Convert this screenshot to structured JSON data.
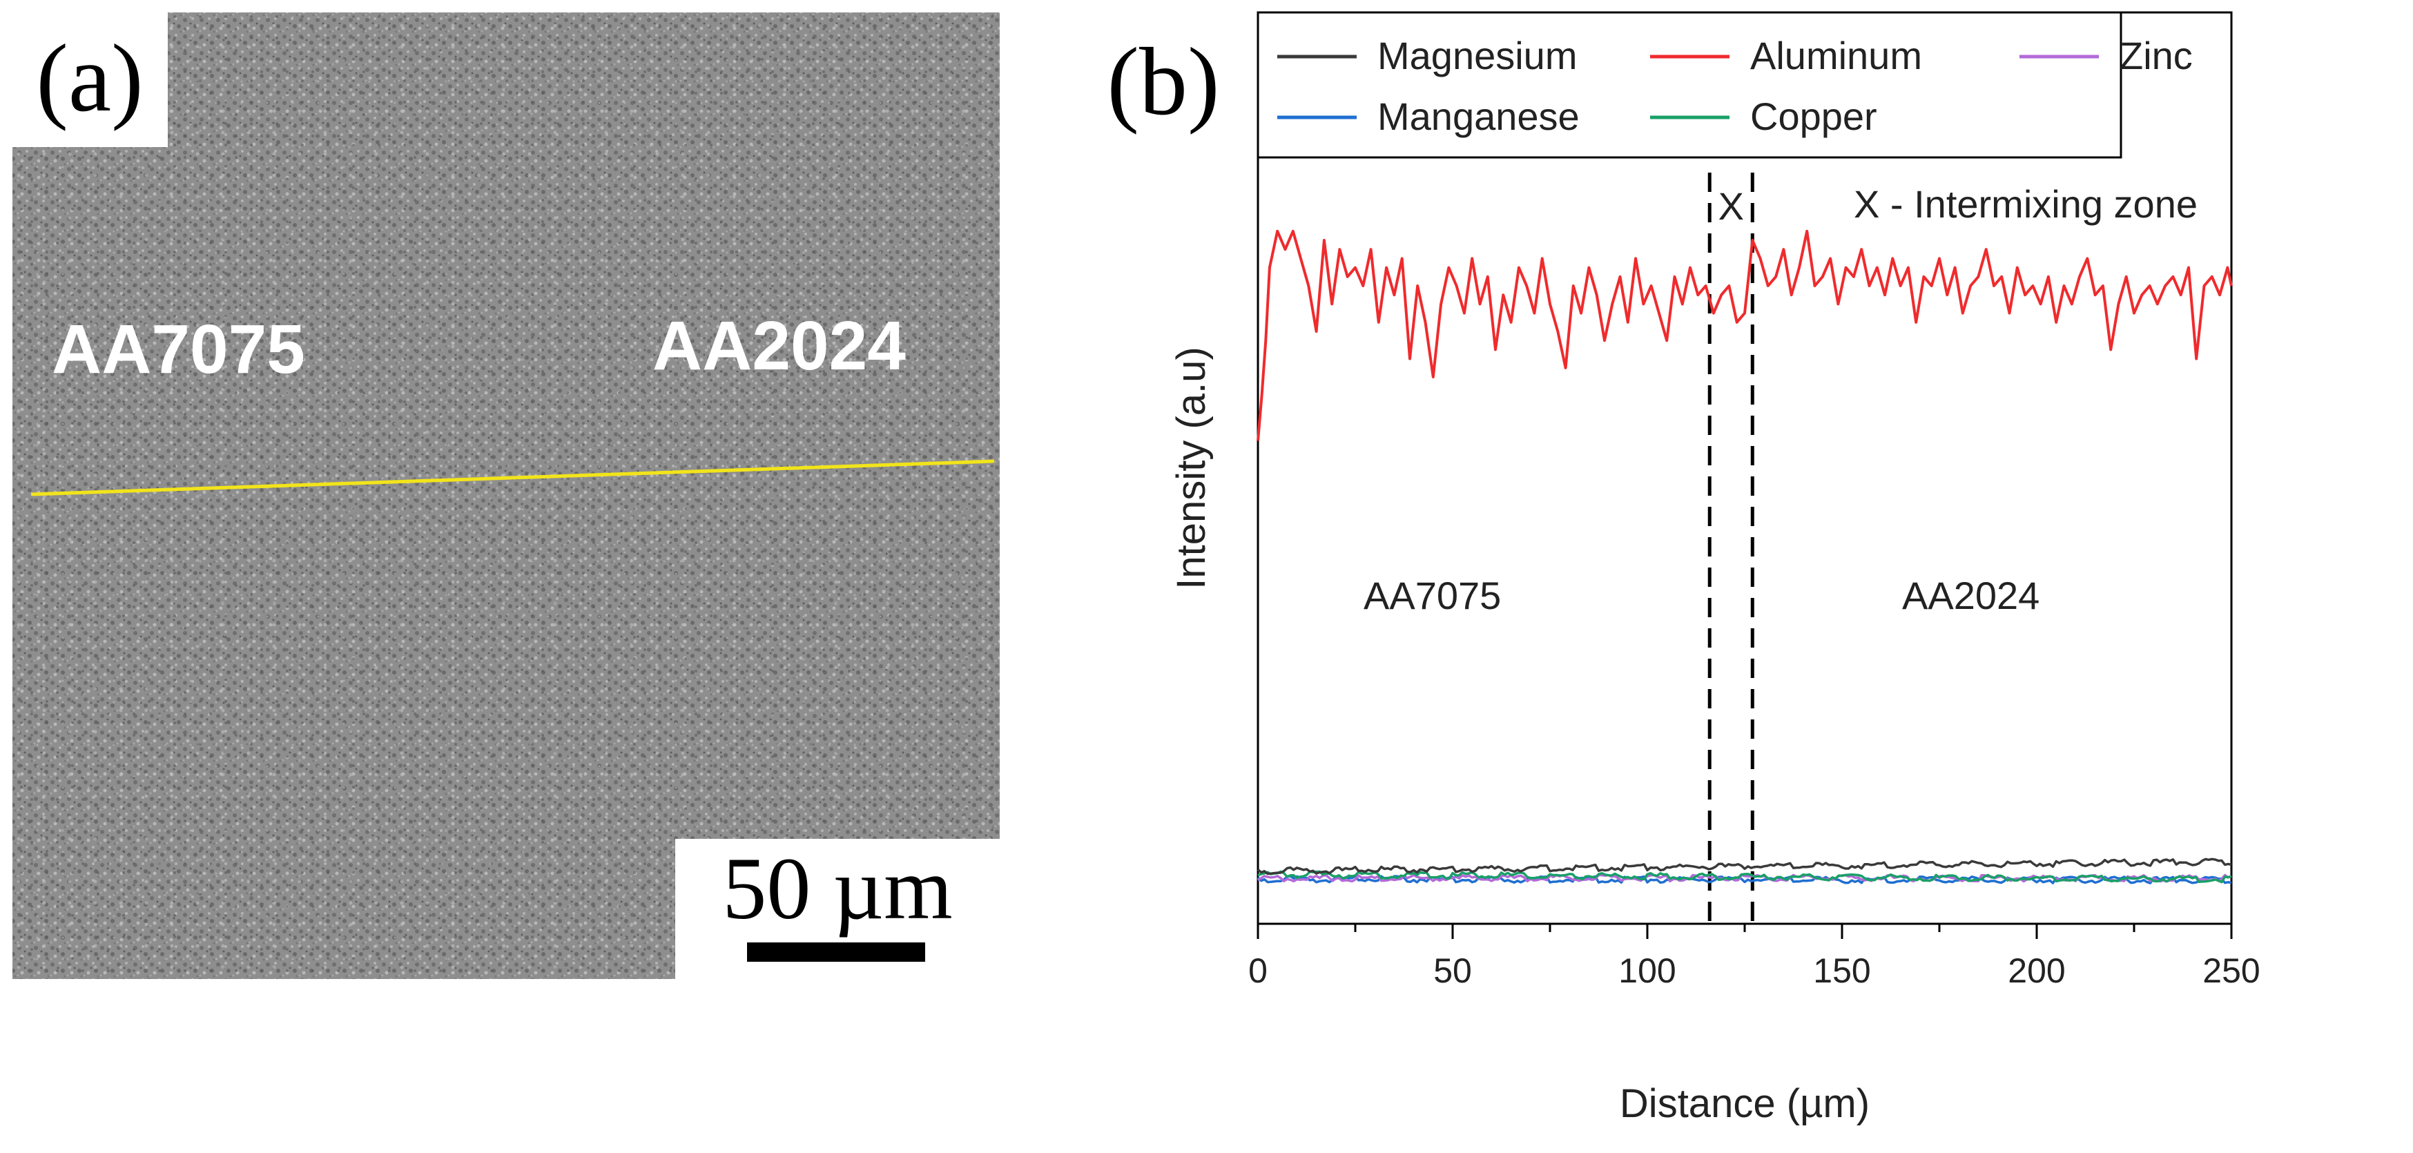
{
  "panel_a": {
    "label": "(a)",
    "regions": {
      "left": "AA7075",
      "right": "AA2024"
    },
    "scale_bar_text": "50 µm",
    "line_color": "#f2e41a"
  },
  "panel_b": {
    "label": "(b)"
  },
  "colors": {
    "Magnesium": "#3a3a3a",
    "Aluminum": "#ef2b2d",
    "Zinc": "#b46ad8",
    "Manganese": "#1f6fd1",
    "Copper": "#1aa068"
  },
  "chart_data": {
    "type": "line",
    "title": "",
    "xlabel": "Distance (µm)",
    "ylabel": "Intensity (a.u)",
    "xlim": [
      0,
      250
    ],
    "ylim": [
      0,
      100
    ],
    "xticks": [
      0,
      50,
      100,
      150,
      200,
      250
    ],
    "legend_position": "top",
    "legend": [
      "Magnesium",
      "Aluminum",
      "Zinc",
      "Manganese",
      "Copper"
    ],
    "annotations": {
      "zone_label": "X - Intermixing zone",
      "zone_marker": "X",
      "zone_range": [
        116,
        127
      ],
      "left_region": "AA7075",
      "right_region": "AA2024"
    },
    "series": [
      {
        "name": "Aluminum",
        "x": [
          0,
          1,
          2,
          3,
          5,
          7,
          9,
          11,
          13,
          15,
          17,
          19,
          21,
          23,
          25,
          27,
          29,
          31,
          33,
          35,
          37,
          39,
          41,
          43,
          45,
          47,
          49,
          51,
          53,
          55,
          57,
          59,
          61,
          63,
          65,
          67,
          69,
          71,
          73,
          75,
          77,
          79,
          81,
          83,
          85,
          87,
          89,
          91,
          93,
          95,
          97,
          99,
          101,
          103,
          105,
          107,
          109,
          111,
          113,
          115,
          117,
          119,
          121,
          123,
          125,
          127,
          129,
          131,
          133,
          135,
          137,
          139,
          141,
          143,
          145,
          147,
          149,
          151,
          153,
          155,
          157,
          159,
          161,
          163,
          165,
          167,
          169,
          171,
          173,
          175,
          177,
          179,
          181,
          183,
          185,
          187,
          189,
          191,
          193,
          195,
          197,
          199,
          201,
          203,
          205,
          207,
          209,
          211,
          213,
          215,
          217,
          219,
          221,
          223,
          225,
          227,
          229,
          231,
          233,
          235,
          237,
          239,
          241,
          243,
          245,
          247,
          249,
          250
        ],
        "values": [
          53,
          58,
          64,
          72,
          76,
          74,
          76,
          73,
          70,
          65,
          75,
          68,
          74,
          71,
          72,
          70,
          74,
          66,
          72,
          69,
          73,
          62,
          70,
          66,
          60,
          68,
          72,
          70,
          67,
          73,
          68,
          71,
          63,
          69,
          66,
          72,
          70,
          67,
          73,
          68,
          65,
          61,
          70,
          67,
          72,
          69,
          64,
          68,
          71,
          66,
          73,
          68,
          70,
          67,
          64,
          71,
          68,
          72,
          69,
          70,
          67,
          69,
          70,
          66,
          67,
          75,
          73,
          70,
          71,
          74,
          69,
          72,
          76,
          70,
          71,
          73,
          68,
          72,
          71,
          74,
          70,
          72,
          69,
          73,
          70,
          72,
          66,
          71,
          70,
          73,
          69,
          72,
          67,
          70,
          71,
          74,
          70,
          71,
          67,
          72,
          69,
          70,
          68,
          71,
          66,
          70,
          68,
          71,
          73,
          69,
          70,
          63,
          68,
          71,
          67,
          69,
          70,
          68,
          70,
          71,
          69,
          72,
          62,
          70,
          71,
          69,
          72,
          70
        ]
      },
      {
        "name": "Magnesium",
        "x": [
          0,
          250
        ],
        "values": [
          5.8,
          6.8
        ]
      },
      {
        "name": "Zinc",
        "x": [
          0,
          250
        ],
        "values": [
          5.0,
          5.0
        ]
      },
      {
        "name": "Manganese",
        "x": [
          0,
          250
        ],
        "values": [
          4.9,
          4.8
        ]
      },
      {
        "name": "Copper",
        "x": [
          0,
          250
        ],
        "values": [
          5.4,
          4.9
        ]
      }
    ]
  }
}
